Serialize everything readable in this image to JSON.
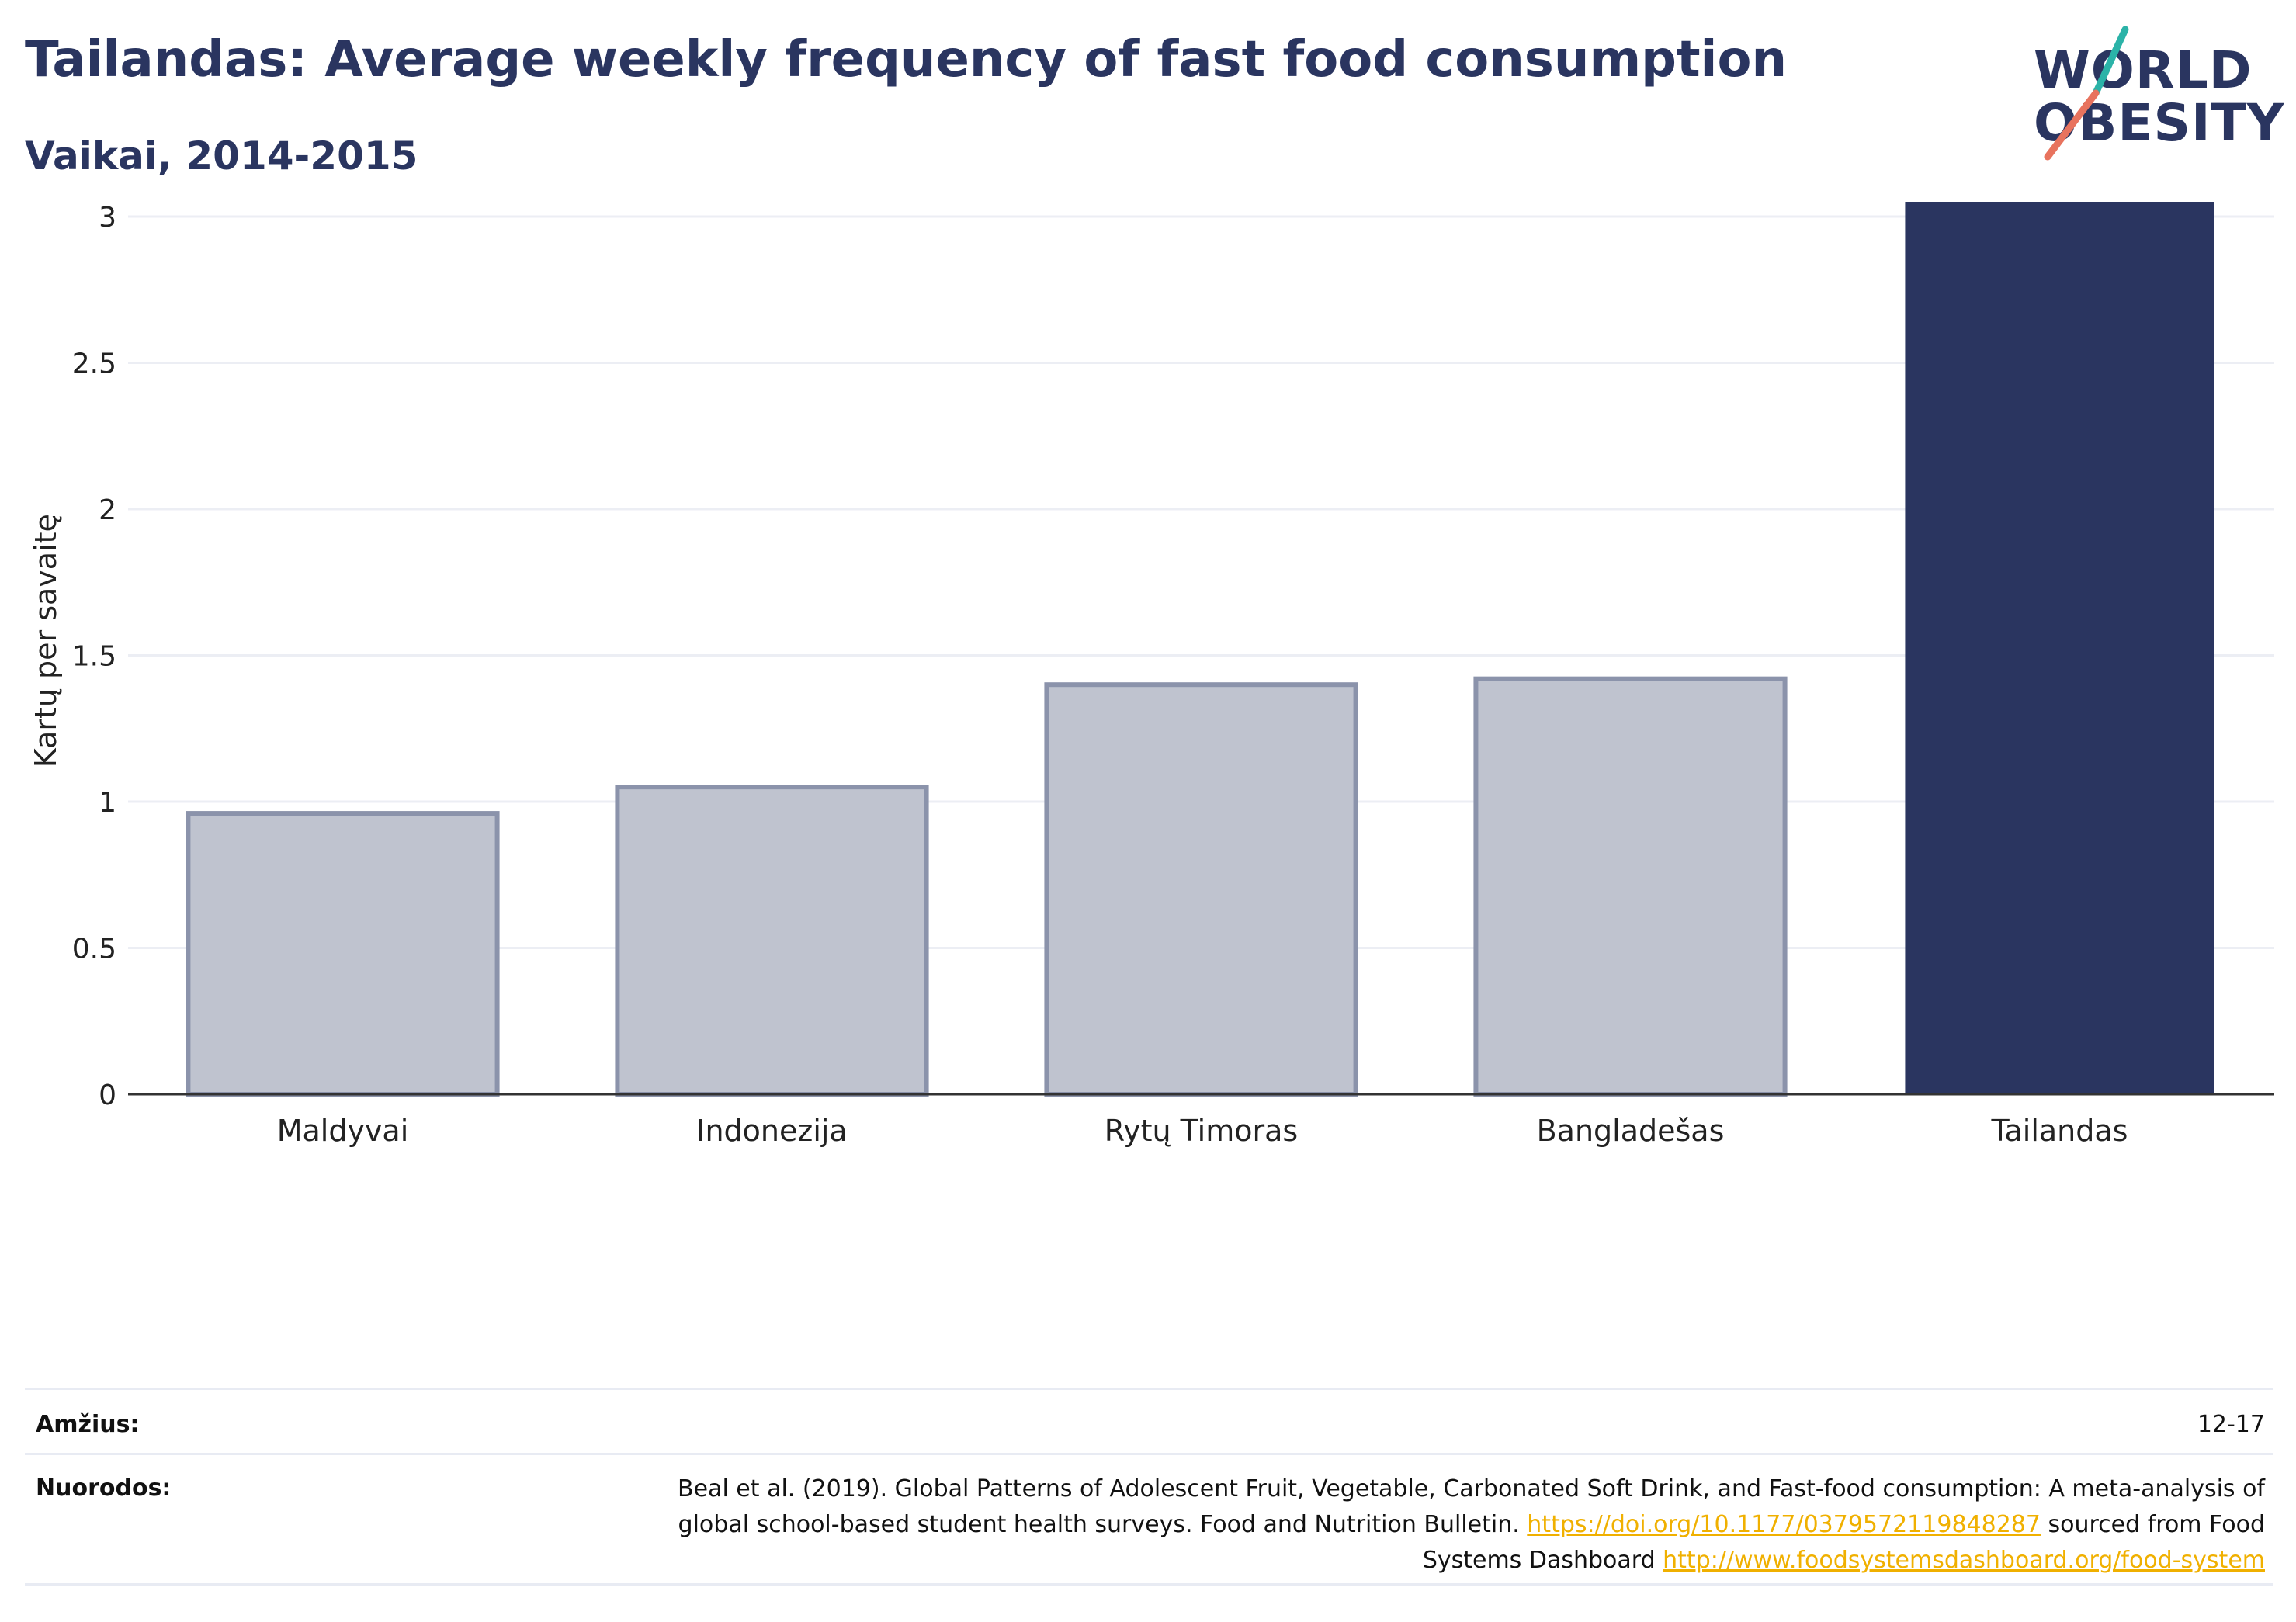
{
  "header": {
    "title": "Tailandas: Average weekly frequency of fast food consumption",
    "subtitle": "Vaikai, 2014-2015"
  },
  "logo": {
    "line1": "WORLD",
    "line2": "OBESITY",
    "accent_teal": "#2bb3a8",
    "accent_coral": "#e8735e"
  },
  "chart_data": {
    "type": "bar",
    "categories": [
      "Maldyvai",
      "Indonezija",
      "Rytų Timoras",
      "Bangladešas",
      "Tailandas"
    ],
    "values": [
      0.96,
      1.05,
      1.4,
      1.42,
      3.13
    ],
    "highlight": "Tailandas",
    "ylabel": "Kartų per savaitę",
    "ylim": [
      0,
      3.3
    ],
    "yticks": [
      0,
      0.5,
      1,
      1.5,
      2,
      2.5,
      3
    ],
    "ytick_labels": [
      "0",
      "0.5",
      "1",
      "1.5",
      "2",
      "2.5",
      "3"
    ],
    "grid": true,
    "colors": {
      "highlight": "#2a3560",
      "other_fill": "#bfc3cf",
      "other_stroke": "#8b93ab"
    }
  },
  "meta": {
    "age_key": "Amžius:",
    "age_value": "12-17",
    "ref_key": "Nuorodos:",
    "ref_text1": "Beal et al. (2019). Global Patterns of Adolescent Fruit, Vegetable, Carbonated Soft Drink, and Fast-food consumption: A meta-analysis of global school-based student health surveys. Food and Nutrition Bulletin. ",
    "ref_link1": "https://doi.org/10.1177/0379572119848287",
    "ref_text2": " sourced from Food Systems Dashboard ",
    "ref_link2": "http://www.foodsystemsdashboard.org/food-system"
  }
}
